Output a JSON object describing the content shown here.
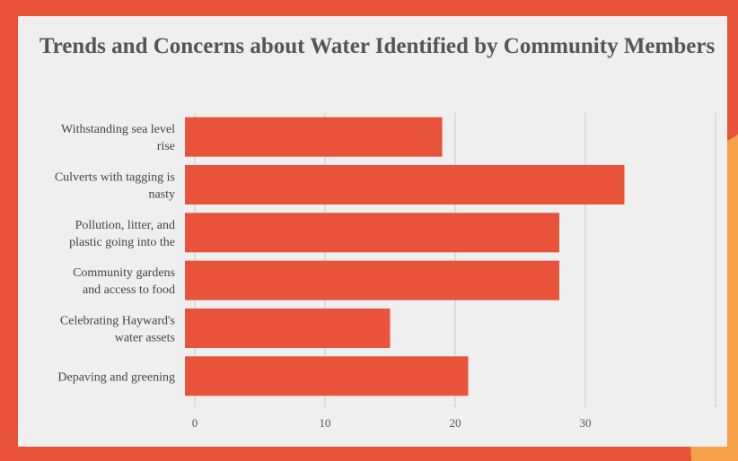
{
  "colors": {
    "frame": "#e8533a",
    "panel": "#efefef",
    "bar": "#e8533a",
    "accent_orange": "#f7a04a",
    "grid": "#c8c8c8",
    "title_text": "#555555"
  },
  "chart_data": {
    "type": "bar",
    "orientation": "horizontal",
    "title": "Trends and Concerns about Water Identified by Community Members",
    "categories": [
      [
        "Withstanding sea level",
        "rise"
      ],
      [
        "Culverts with tagging is",
        "nasty"
      ],
      [
        "Pollution, litter, and",
        "plastic going into the"
      ],
      [
        "Community gardens",
        "and access to food"
      ],
      [
        "Celebrating Hayward's",
        "water assets"
      ],
      [
        "Depaving and greening"
      ]
    ],
    "values": [
      19,
      33,
      28,
      28,
      15,
      21
    ],
    "xlim": [
      0,
      40
    ],
    "xticks": [
      0,
      10,
      20,
      30
    ],
    "grid": true,
    "xlabel": "",
    "ylabel": ""
  }
}
